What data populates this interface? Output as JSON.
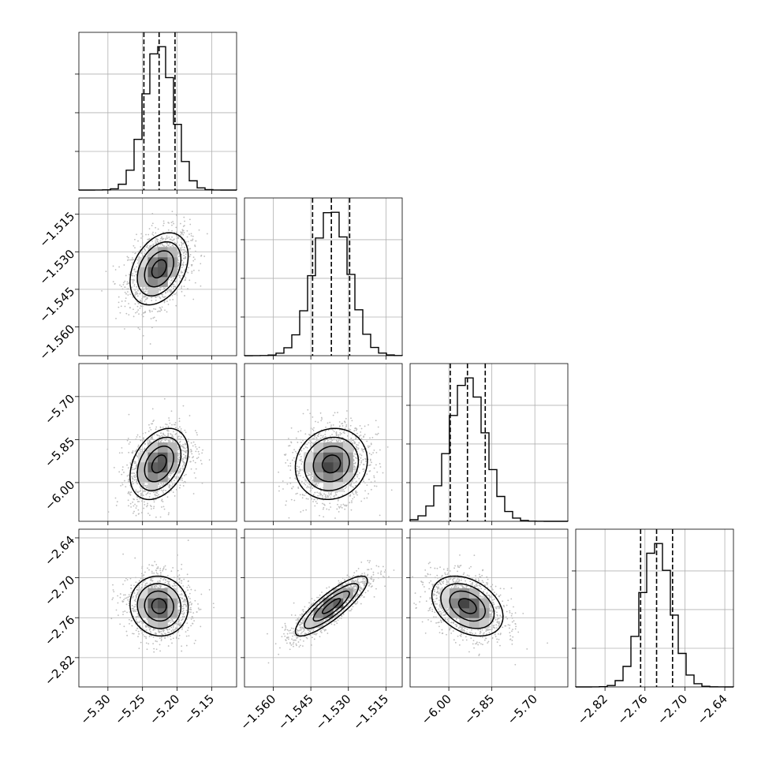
{
  "chart_data": {
    "type": "corner",
    "title": "",
    "parameters": [
      {
        "ticks": [
          -5.3,
          -5.25,
          -5.2,
          -5.15
        ],
        "tick_labels": [
          "−5.30",
          "−5.25",
          "−5.20",
          "−5.15"
        ],
        "range": [
          -5.342,
          -5.114
        ],
        "mean": -5.226,
        "sigma": 0.021,
        "quantiles": [
          -5.248,
          -5.226,
          -5.203
        ]
      },
      {
        "ticks": [
          -1.56,
          -1.545,
          -1.53,
          -1.515
        ],
        "tick_labels": [
          "−1.560",
          "−1.545",
          "−1.530",
          "−1.515"
        ],
        "range": [
          -1.5715,
          -1.5085
        ],
        "mean": -1.5368,
        "sigma": 0.0072,
        "quantiles": [
          -1.5443,
          -1.5368,
          -1.5295
        ]
      },
      {
        "ticks": [
          -6.0,
          -5.85,
          -5.7
        ],
        "tick_labels": [
          "−6.00",
          "−5.85",
          "−5.70"
        ],
        "range": [
          -6.135,
          -5.585
        ],
        "mean": -5.935,
        "sigma": 0.062,
        "quantiles": [
          -5.995,
          -5.935,
          -5.873
        ]
      },
      {
        "ticks": [
          -2.82,
          -2.76,
          -2.7,
          -2.64
        ],
        "tick_labels": [
          "−2.82",
          "−2.76",
          "−2.70",
          "−2.64"
        ],
        "range": [
          -2.864,
          -2.627
        ],
        "mean": -2.7425,
        "sigma": 0.0225,
        "quantiles": [
          -2.7665,
          -2.7425,
          -2.7185
        ]
      }
    ],
    "correlations": [
      [
        1.0,
        0.35,
        0.35,
        -0.05
      ],
      [
        0.35,
        1.0,
        0.1,
        0.85
      ],
      [
        0.35,
        0.1,
        1.0,
        -0.35
      ],
      [
        -0.05,
        0.85,
        -0.35,
        1.0
      ]
    ],
    "histogram_bins": 20,
    "contour_levels_sigma": [
      0.5,
      1.0,
      1.5,
      2.0
    ],
    "grid": true,
    "colors": {
      "line": "#000000",
      "grid": "#b0b0b0",
      "scatter": "#bdbdbd"
    }
  }
}
